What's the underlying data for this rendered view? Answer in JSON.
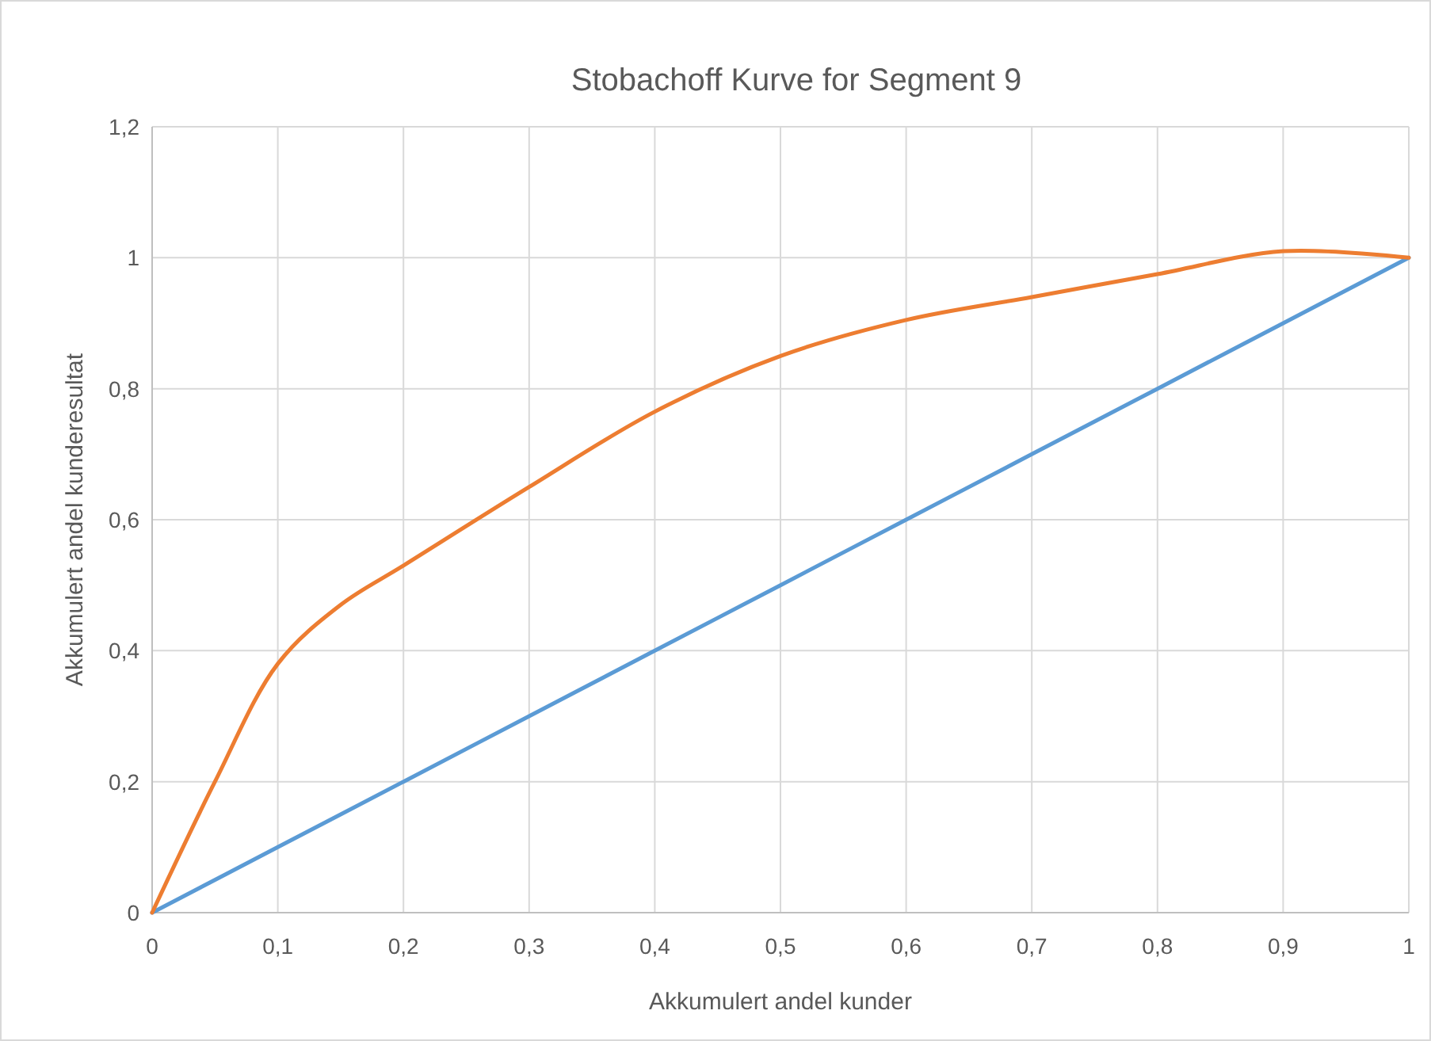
{
  "chart_data": {
    "type": "line",
    "title": "Stobachoff Kurve for Segment 9",
    "xlabel": "Akkumulert andel kunder",
    "ylabel": "Akkumulert andel kunderesultat",
    "x": [
      0,
      0.1,
      0.2,
      0.3,
      0.4,
      0.5,
      0.6,
      0.7,
      0.8,
      0.9,
      1
    ],
    "series": [
      {
        "color": "#5b9bd5",
        "values": [
          0,
          0.1,
          0.2,
          0.3,
          0.4,
          0.5,
          0.6,
          0.7,
          0.8,
          0.9,
          1
        ]
      },
      {
        "color": "#ed7d31",
        "x": [
          0,
          0.05,
          0.1,
          0.15,
          0.2,
          0.3,
          0.4,
          0.5,
          0.6,
          0.7,
          0.8,
          0.9,
          1
        ],
        "values": [
          0,
          0.2,
          0.38,
          0.47,
          0.53,
          0.65,
          0.765,
          0.85,
          0.905,
          0.94,
          0.975,
          1.01,
          1
        ]
      }
    ],
    "xlim": [
      0,
      1
    ],
    "xticks": [
      {
        "value": 0,
        "label": "0"
      },
      {
        "value": 0.1,
        "label": "0,1"
      },
      {
        "value": 0.2,
        "label": "0,2"
      },
      {
        "value": 0.3,
        "label": "0,3"
      },
      {
        "value": 0.4,
        "label": "0,4"
      },
      {
        "value": 0.5,
        "label": "0,5"
      },
      {
        "value": 0.6,
        "label": "0,6"
      },
      {
        "value": 0.7,
        "label": "0,7"
      },
      {
        "value": 0.8,
        "label": "0,8"
      },
      {
        "value": 0.9,
        "label": "0,9"
      },
      {
        "value": 1,
        "label": "1"
      }
    ],
    "ylim": [
      0,
      1.2
    ],
    "yticks": [
      {
        "value": 0,
        "label": "0"
      },
      {
        "value": 0.2,
        "label": "0,2"
      },
      {
        "value": 0.4,
        "label": "0,4"
      },
      {
        "value": 0.6,
        "label": "0,6"
      },
      {
        "value": 0.8,
        "label": "0,8"
      },
      {
        "value": 1,
        "label": "1"
      },
      {
        "value": 1.2,
        "label": "1,2"
      }
    ],
    "grid": true,
    "marker": "none",
    "line_style": "solid"
  }
}
